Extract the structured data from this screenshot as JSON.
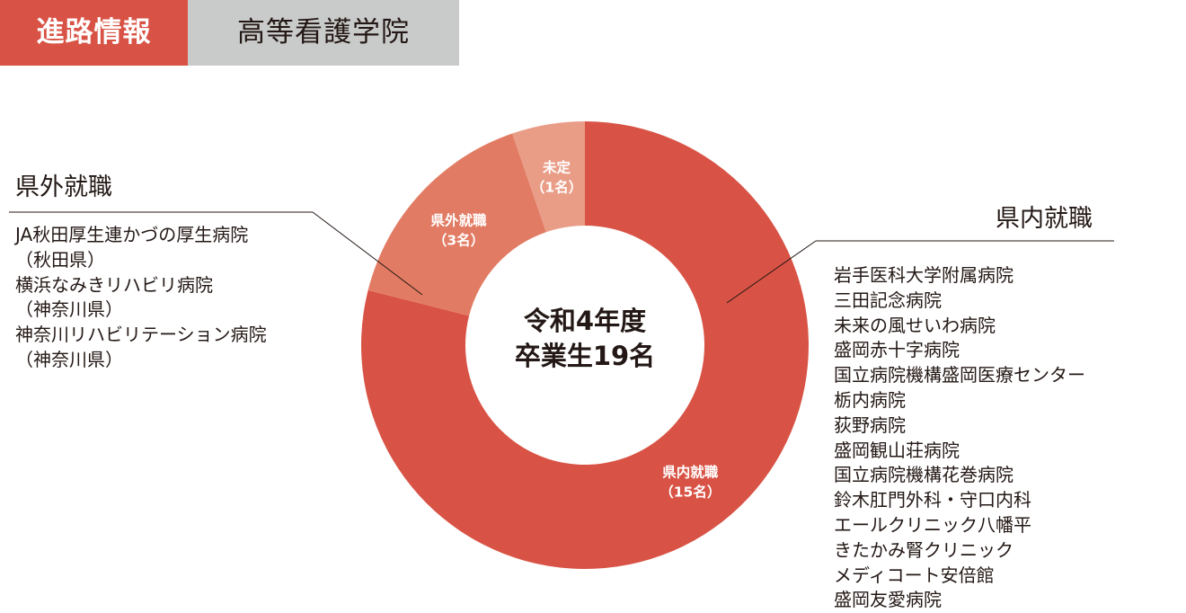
{
  "header": {
    "tag": "進路情報",
    "school": "高等看護学院"
  },
  "colors": {
    "kennai": "#d85345",
    "kengai": "#e27b63",
    "mitei": "#e99d87",
    "header_tag": "#d85345",
    "header_school": "#c9caca"
  },
  "chart_data": {
    "type": "pie",
    "variant": "donut",
    "center_text": [
      "令和4年度",
      "卒業生19名"
    ],
    "total": 19,
    "start_direction": "top",
    "direction": "clockwise",
    "slices": [
      {
        "label": "県内就職",
        "count_text": "（15名）",
        "value": 15,
        "color": "#d85345"
      },
      {
        "label": "県外就職",
        "count_text": "（3名）",
        "value": 3,
        "color": "#e27b63"
      },
      {
        "label": "未定",
        "count_text": "（1名）",
        "value": 1,
        "color": "#e99d87"
      }
    ]
  },
  "kengai": {
    "title": "県外就職",
    "items": [
      "JA秋田厚生連かづの厚生病院",
      "（秋田県）",
      "横浜なみきリハビリ病院",
      "（神奈川県）",
      "神奈川リハビリテーション病院",
      "（神奈川県）"
    ]
  },
  "kennai": {
    "title": "県内就職",
    "items": [
      "岩手医科大学附属病院",
      "三田記念病院",
      "未来の風せいわ病院",
      "盛岡赤十字病院",
      "国立病院機構盛岡医療センター",
      "栃内病院",
      "荻野病院",
      "盛岡観山荘病院",
      "国立病院機構花巻病院",
      "鈴木肛門外科・守口内科",
      "エールクリニック八幡平",
      "きたかみ腎クリニック",
      "メディコート安倍館",
      "盛岡友愛病院"
    ]
  }
}
